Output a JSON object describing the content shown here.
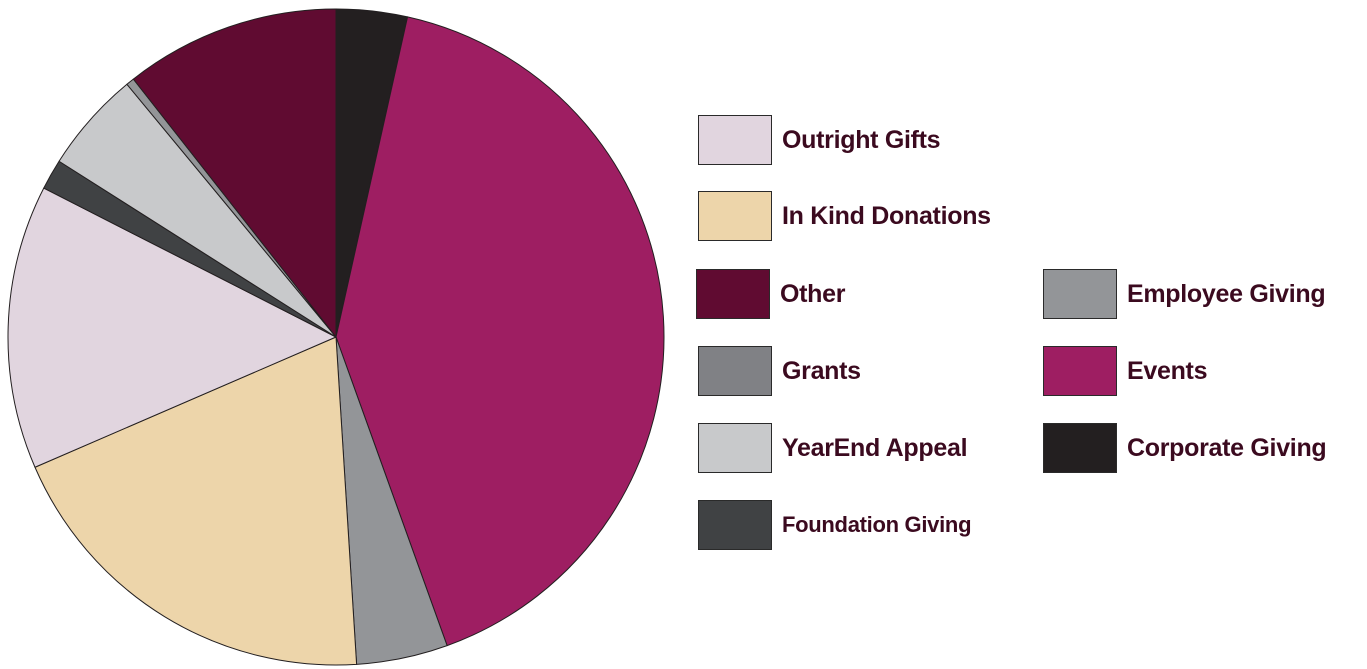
{
  "chart_data": {
    "type": "pie",
    "slices": [
      {
        "label": "Corporate Giving",
        "value": 3.5,
        "color": "#231f20"
      },
      {
        "label": "Events",
        "value": 41.0,
        "color": "#9e1e62"
      },
      {
        "label": "Grants",
        "value": 4.5,
        "color": "#939598"
      },
      {
        "label": "In  Kind Donations",
        "value": 19.5,
        "color": "#edd5aa"
      },
      {
        "label": "Outright Gifts",
        "value": 14.0,
        "color": "#e1d5df"
      },
      {
        "label": "Foundation Giving",
        "value": 1.5,
        "color": "#404244"
      },
      {
        "label": "YearEnd Appeal",
        "value": 5.0,
        "color": "#c8c9cb"
      },
      {
        "label": "Employee Giving",
        "value": 0.4,
        "color": "#939598"
      },
      {
        "label": "Other",
        "value": 10.6,
        "color": "#600b31"
      }
    ],
    "legend": [
      {
        "label": "Outright Gifts",
        "color": "#e1d5df"
      },
      {
        "label": "In  Kind Donations",
        "color": "#edd5aa"
      },
      {
        "label": "Other",
        "color": "#600b31"
      },
      {
        "label": "Grants",
        "color": "#808185"
      },
      {
        "label": "YearEnd Appeal",
        "color": "#c8c9cb"
      },
      {
        "label": "Foundation Giving",
        "color": "#404244"
      },
      {
        "label": "Employee Giving",
        "color": "#939598"
      },
      {
        "label": "Events",
        "color": "#9e1e62"
      },
      {
        "label": "Corporate Giving",
        "color": "#231f20"
      }
    ],
    "legend_placement": "right",
    "title": ""
  }
}
